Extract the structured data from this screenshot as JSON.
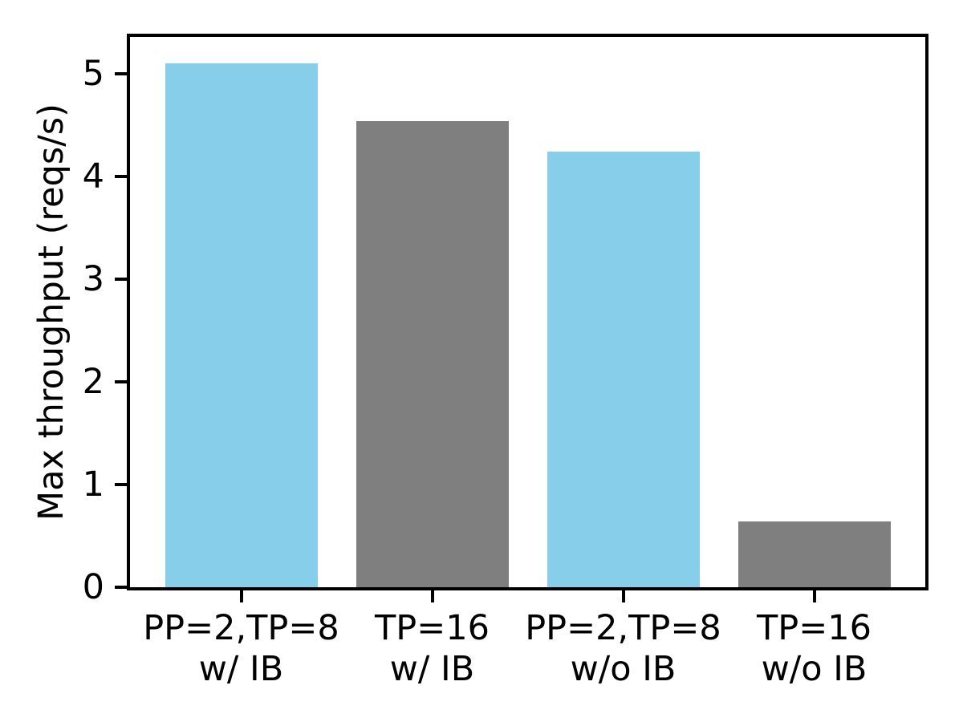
{
  "chart_data": {
    "type": "bar",
    "title": "",
    "xlabel": "",
    "ylabel": "Max throughput (reqs/s)",
    "categories": [
      {
        "line1": "PP=2,TP=8",
        "line2": "w/ IB"
      },
      {
        "line1": "TP=16",
        "line2": "w/ IB"
      },
      {
        "line1": "PP=2,TP=8",
        "line2": "w/o IB"
      },
      {
        "line1": "TP=16",
        "line2": "w/o IB"
      }
    ],
    "values": [
      5.1,
      4.54,
      4.24,
      0.64
    ],
    "bar_colors": [
      "#87CEEB",
      "#7F7F7F",
      "#87CEEB",
      "#7F7F7F"
    ],
    "yticks": [
      0,
      1,
      2,
      3,
      4,
      5
    ],
    "ylim": [
      0,
      5.36
    ],
    "grid": false,
    "legend": null,
    "axis_color": "#000000",
    "background_color": "#FFFFFF"
  }
}
